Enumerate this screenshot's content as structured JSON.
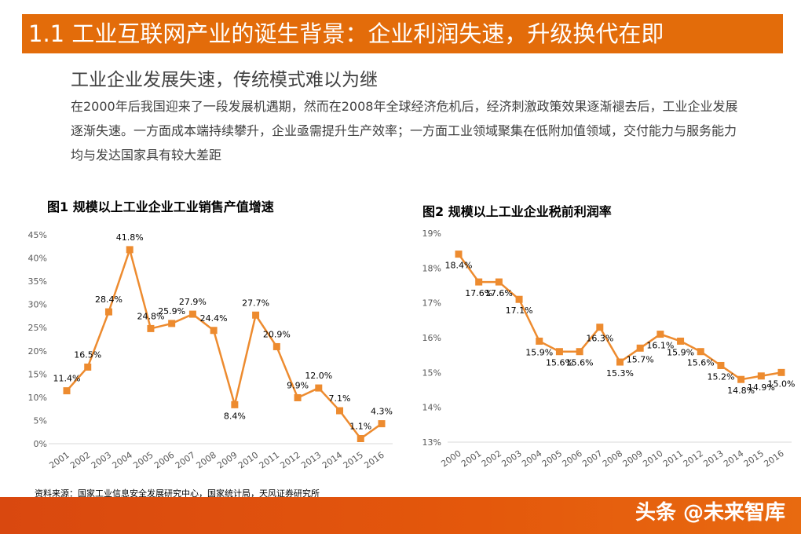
{
  "header": {
    "title": "1.1 工业互联网产业的诞生背景：企业利润失速，升级换代在即"
  },
  "subheading": "工业企业发展失速，传统模式难以为继",
  "paragraph": "在2000年后我国迎来了一段发展机遇期，然而在2008年全球经济危机后，经济刺激政策效果逐渐褪去后，工业企业发展逐渐失速。一方面成本端持续攀升，企业亟需提升生产效率；一方面工业领域聚集在低附加值领域，交付能力与服务能力均与发达国家具有较大差距",
  "source": "资料来源：国家工业信息安全发展研究中心，国家统计局，天风证券研究所",
  "watermark": "头条 @未来智库",
  "colors": {
    "accent": "#e36c0a",
    "series": "#ed8b2f"
  },
  "chart_data": [
    {
      "type": "line",
      "title": "图1 规模以上工业企业工业销售产值增速",
      "categories": [
        "2001",
        "2002",
        "2003",
        "2004",
        "2005",
        "2006",
        "2007",
        "2008",
        "2009",
        "2010",
        "2011",
        "2012",
        "2013",
        "2014",
        "2015",
        "2016"
      ],
      "values": [
        11.4,
        16.5,
        28.4,
        41.8,
        24.8,
        25.9,
        27.9,
        24.4,
        8.4,
        27.7,
        20.9,
        9.9,
        12.0,
        7.1,
        1.1,
        4.3
      ],
      "data_labels": [
        "11.4%",
        "16.5%",
        "28.4%",
        "41.8%",
        "24.8%",
        "25.9%",
        "27.9%",
        "24.4%",
        "8.4%",
        "27.7%",
        "20.9%",
        "9.9%",
        "12.0%",
        "7.1%",
        "1.1%",
        "4.3%"
      ],
      "yticks": [
        "0%",
        "5%",
        "10%",
        "15%",
        "20%",
        "25%",
        "30%",
        "35%",
        "40%",
        "45%"
      ],
      "ylim": [
        0,
        45
      ],
      "grid": false,
      "marker": "square"
    },
    {
      "type": "line",
      "title": "图2 规模以上工业企业税前利润率",
      "categories": [
        "2000",
        "2001",
        "2002",
        "2003",
        "2004",
        "2005",
        "2006",
        "2007",
        "2008",
        "2009",
        "2010",
        "2011",
        "2012",
        "2013",
        "2014",
        "2015",
        "2016"
      ],
      "values": [
        18.4,
        17.6,
        17.6,
        17.1,
        15.9,
        15.6,
        15.6,
        16.3,
        15.3,
        15.7,
        16.1,
        15.9,
        15.6,
        15.2,
        14.8,
        14.9,
        15.0
      ],
      "data_labels": [
        "18.4%",
        "17.6%",
        "17.6%",
        "17.1%",
        "15.9%",
        "15.6%",
        "15.6%",
        "16.3%",
        "15.3%",
        "15.7%",
        "16.1%",
        "15.9%",
        "15.6%",
        "15.2%",
        "14.8%",
        "14.9%",
        "15.0%"
      ],
      "yticks": [
        "13%",
        "14%",
        "15%",
        "16%",
        "17%",
        "18%",
        "19%"
      ],
      "ylim": [
        13,
        19
      ],
      "grid": false,
      "marker": "square"
    }
  ]
}
